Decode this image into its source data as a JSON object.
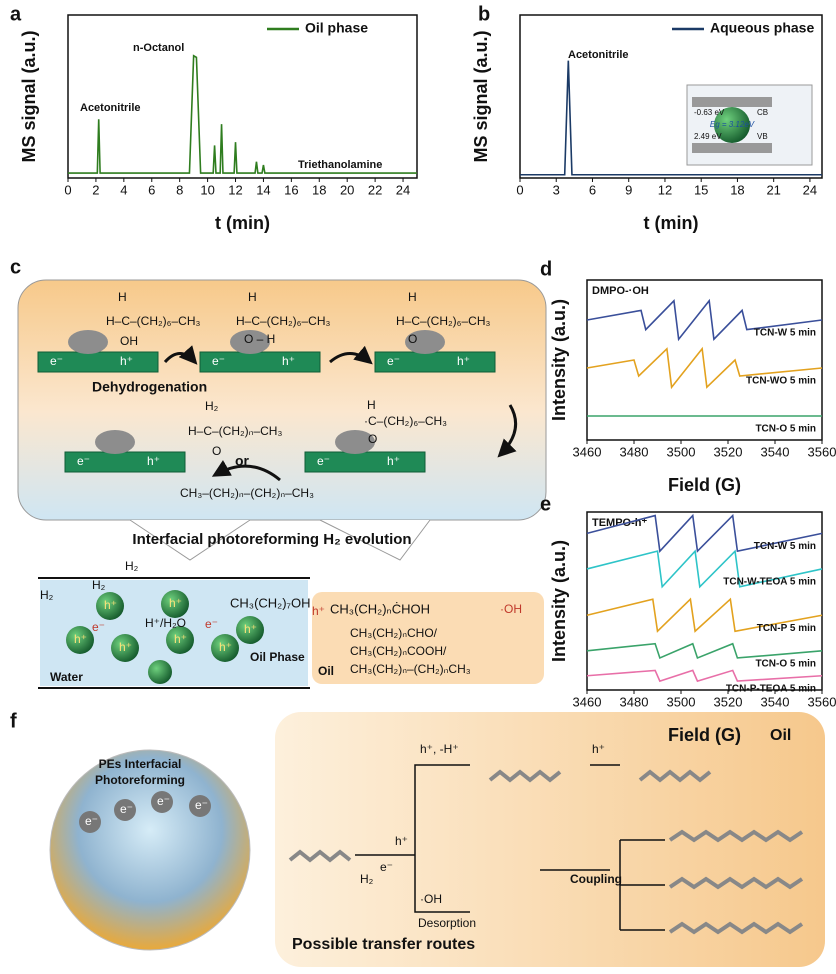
{
  "chart_data": [
    {
      "type": "line",
      "panel": "a",
      "xlabel": "t (min)",
      "ylabel": "MS signal (a.u.)",
      "xlim": [
        0,
        25
      ],
      "xticks": [
        0,
        2,
        4,
        6,
        8,
        10,
        12,
        14,
        16,
        18,
        20,
        22,
        24
      ],
      "ylim": [
        0,
        1
      ],
      "legend": "upper right",
      "annotations": [
        "Acetonitrile",
        "n-Octanol",
        "Triethanolamine"
      ],
      "series": [
        {
          "name": "Oil phase",
          "color": "#2f7d1f",
          "x": [
            0,
            2.1,
            2.2,
            2.3,
            8.7,
            9.0,
            9.2,
            9.5,
            10.4,
            10.5,
            10.6,
            10.9,
            11.0,
            11.1,
            11.9,
            12.0,
            12.1,
            13.4,
            13.5,
            13.6,
            13.9,
            14.0,
            14.1,
            25
          ],
          "values": [
            0.03,
            0.03,
            0.36,
            0.03,
            0.03,
            0.75,
            0.74,
            0.03,
            0.03,
            0.2,
            0.03,
            0.03,
            0.33,
            0.03,
            0.03,
            0.22,
            0.03,
            0.03,
            0.1,
            0.03,
            0.03,
            0.08,
            0.03,
            0.03
          ]
        }
      ]
    },
    {
      "type": "line",
      "panel": "b",
      "xlabel": "t (min)",
      "ylabel": "MS signal (a.u.)",
      "xlim": [
        0,
        25
      ],
      "xticks": [
        0,
        3,
        6,
        9,
        12,
        15,
        18,
        21,
        24
      ],
      "ylim": [
        0,
        1
      ],
      "legend": "upper right",
      "annotations": [
        "Acetonitrile"
      ],
      "inset": {
        "cb_energy": "-0.63 eV",
        "cb": "CB",
        "gap": "Eg = 3.12eV",
        "vb_energy": "2.49 eV",
        "vb": "VB"
      },
      "series": [
        {
          "name": "Aqueous phase",
          "color": "#1b3a66",
          "x": [
            0,
            3.7,
            4.0,
            4.3,
            25
          ],
          "values": [
            0.02,
            0.02,
            0.72,
            0.02,
            0.02
          ]
        }
      ]
    },
    {
      "type": "line",
      "panel": "d",
      "label": "DMPO-·OH",
      "xlabel": "Field (G)",
      "ylabel": "Intensity (a.u.)",
      "xlim": [
        3460,
        3560
      ],
      "xticks": [
        3460,
        3480,
        3500,
        3520,
        3540,
        3560
      ],
      "ylim": [
        0,
        1
      ],
      "series": [
        {
          "name": "TCN-W 5 min",
          "color": "#3a4f9a",
          "x": [
            3460,
            3483,
            3485,
            3497,
            3499,
            3512,
            3514,
            3526,
            3528,
            3560
          ],
          "values": [
            0.75,
            0.81,
            0.69,
            0.87,
            0.63,
            0.87,
            0.63,
            0.81,
            0.69,
            0.75
          ]
        },
        {
          "name": "TCN-WO 5 min",
          "color": "#e3a21f",
          "x": [
            3460,
            3480,
            3482,
            3494,
            3496,
            3509,
            3511,
            3523,
            3525,
            3560
          ],
          "values": [
            0.45,
            0.5,
            0.4,
            0.57,
            0.33,
            0.57,
            0.33,
            0.5,
            0.4,
            0.45
          ]
        },
        {
          "name": "TCN-O 5 min",
          "color": "#3aa36a",
          "x": [
            3460,
            3560
          ],
          "values": [
            0.15,
            0.15
          ]
        }
      ]
    },
    {
      "type": "line",
      "panel": "e",
      "label": "TEMPO-h⁺",
      "xlabel": "Field (G)",
      "ylabel": "Intensity (a.u.)",
      "xlim": [
        3460,
        3560
      ],
      "xticks": [
        3460,
        3480,
        3500,
        3520,
        3540,
        3560
      ],
      "ylim": [
        0,
        1
      ],
      "series": [
        {
          "name": "TCN-W 5 min",
          "color": "#3a4f9a",
          "x": [
            3460,
            3489,
            3491,
            3505,
            3507,
            3522,
            3524,
            3560
          ],
          "values": [
            0.88,
            0.98,
            0.78,
            0.98,
            0.78,
            0.98,
            0.78,
            0.88
          ]
        },
        {
          "name": "TCN-W-TEOA 5 min",
          "color": "#2ec4c8",
          "x": [
            3460,
            3490,
            3492,
            3506,
            3508,
            3523,
            3525,
            3560
          ],
          "values": [
            0.68,
            0.78,
            0.58,
            0.78,
            0.58,
            0.78,
            0.58,
            0.68
          ]
        },
        {
          "name": "TCN-P 5 min",
          "color": "#e3a21f",
          "x": [
            3460,
            3488,
            3490,
            3504,
            3506,
            3521,
            3523,
            3560
          ],
          "values": [
            0.42,
            0.51,
            0.33,
            0.51,
            0.33,
            0.51,
            0.33,
            0.42
          ]
        },
        {
          "name": "TCN-O 5 min",
          "color": "#3aa36a",
          "x": [
            3460,
            3489,
            3491,
            3505,
            3507,
            3522,
            3524,
            3560
          ],
          "values": [
            0.22,
            0.26,
            0.18,
            0.26,
            0.18,
            0.26,
            0.18,
            0.22
          ]
        },
        {
          "name": "TCN-P-TEOA 5 min",
          "color": "#e86fa8",
          "x": [
            3460,
            3489,
            3491,
            3505,
            3507,
            3522,
            3524,
            3560
          ],
          "values": [
            0.08,
            0.11,
            0.05,
            0.11,
            0.05,
            0.11,
            0.05,
            0.08
          ]
        }
      ]
    }
  ],
  "panel_c": {
    "label": "c",
    "h": "H",
    "mol": "H–C–(CH₂)₆–CH₃",
    "oh": "OH",
    "o_h": "O – H",
    "o": "O",
    "dehydrogenation": "Dehydrogenation",
    "aldehyde": "H–C–(CH₂)ₙ–CH₃",
    "or": "or",
    "radical": "·C–(CH₂)₆–CH₃",
    "alkane": "CH₃–(CH₂)ₙ–(CH₂)ₙ–CH₃",
    "title": "Interfacial photoreforming H₂ evolution",
    "h2": "H₂",
    "h_plus": "h⁺",
    "e_minus": "e⁻",
    "proton": "H⁺/H₂O",
    "octanol": "CH₃(CH₂)₇OH",
    "oil_phase": "Oil Phase",
    "water": "Water",
    "oil": "Oil",
    "radical2": "CH₃(CH₂)ₙĊHOH",
    "hydroxyl": "·OH",
    "products": [
      "CH₃(CH₂)ₙCHO/",
      "CH₃(CH₂)ₙCOOH/",
      "CH₃(CH₂)ₙ–(CH₂)ₙCH₃"
    ]
  },
  "panel_f": {
    "label": "f",
    "sphere": [
      "PEs Interfacial",
      "Photoreforming"
    ],
    "oil": "Oil",
    "step1": "h⁺, -H⁺",
    "h_plus": "h⁺",
    "h2": "H₂",
    "e_minus": "e⁻",
    "hydroxyl": "·OH",
    "desorption": "Desorption",
    "coupling": "Coupling",
    "routes": "Possible transfer routes"
  }
}
